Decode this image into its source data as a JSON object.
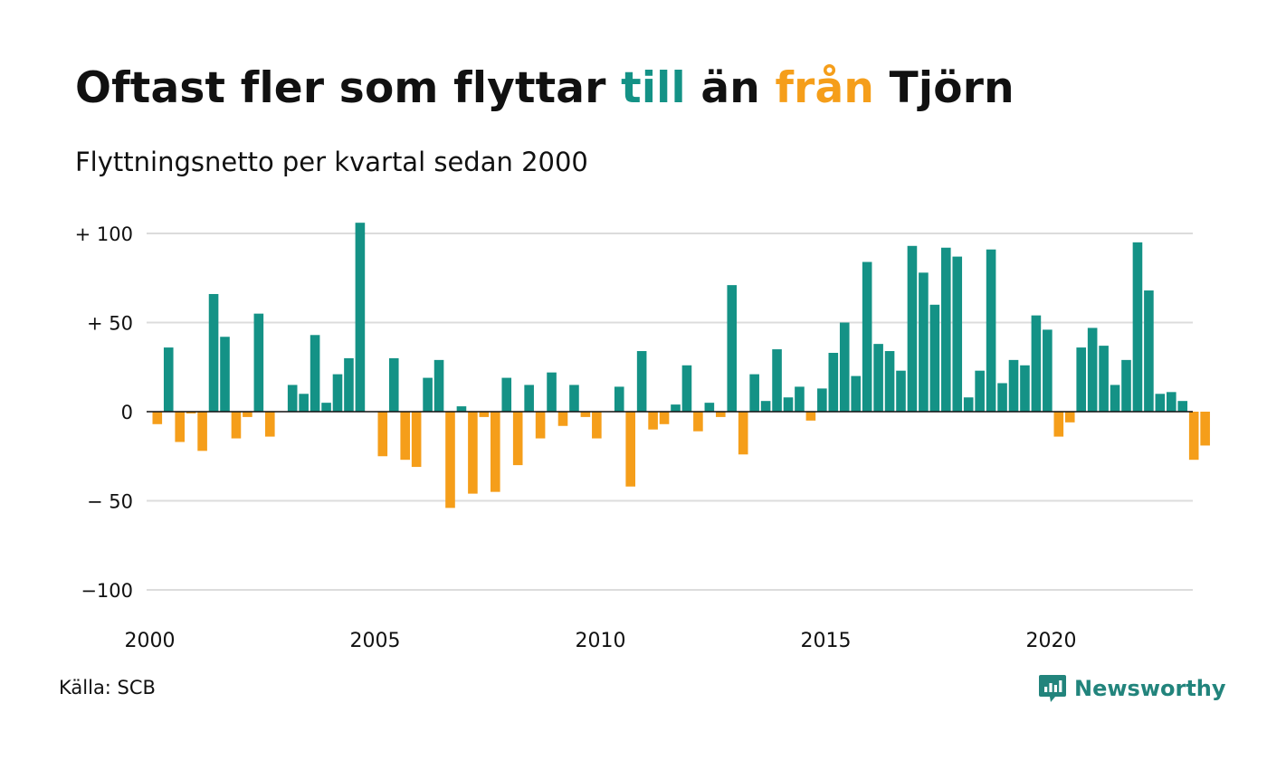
{
  "title": {
    "part1": "Oftast fler som flyttar ",
    "till": "till",
    "part2": " än ",
    "fran": "från",
    "part3": " Tjörn"
  },
  "subtitle": "Flyttningsnetto per kvartal sedan 2000",
  "source": "Källa: SCB",
  "brand": {
    "name": "Newsworthy",
    "icon": "newsworthy-logo-icon"
  },
  "colors": {
    "positive": "#149286",
    "negative": "#f59e1a",
    "brand": "#22847c"
  },
  "chart_data": {
    "type": "bar",
    "title": "Oftast fler som flyttar till än från Tjörn",
    "subtitle": "Flyttningsnetto per kvartal sedan 2000",
    "ylim": [
      -110,
      110
    ],
    "y_ticks": [
      {
        "value": 100,
        "label": "+ 100"
      },
      {
        "value": 50,
        "label": "+  50"
      },
      {
        "value": 0,
        "label": "0"
      },
      {
        "value": -50,
        "label": "− 50"
      },
      {
        "value": -100,
        "label": "−100"
      }
    ],
    "x_ticks": [
      "2000",
      "2005",
      "2010",
      "2015",
      "2020"
    ],
    "grid": true,
    "start_year": 2000,
    "values": [
      -7,
      36,
      -17,
      -1,
      -22,
      66,
      42,
      -15,
      -3,
      55,
      -14,
      0,
      15,
      10,
      43,
      5,
      21,
      30,
      106,
      0,
      -25,
      30,
      -27,
      -31,
      19,
      29,
      -54,
      3,
      -46,
      -3,
      -45,
      19,
      -30,
      15,
      -15,
      22,
      -8,
      15,
      -3,
      -15,
      0,
      14,
      -42,
      34,
      -10,
      -7,
      4,
      26,
      -11,
      5,
      -3,
      71,
      -24,
      21,
      6,
      35,
      8,
      14,
      -5,
      13,
      33,
      50,
      20,
      84,
      38,
      34,
      23,
      93,
      78,
      60,
      92,
      87,
      8,
      23,
      91,
      16,
      29,
      26,
      54,
      46,
      -14,
      -6,
      36,
      47,
      37,
      15,
      29,
      95,
      68,
      10,
      11,
      6,
      -27,
      -19
    ]
  }
}
